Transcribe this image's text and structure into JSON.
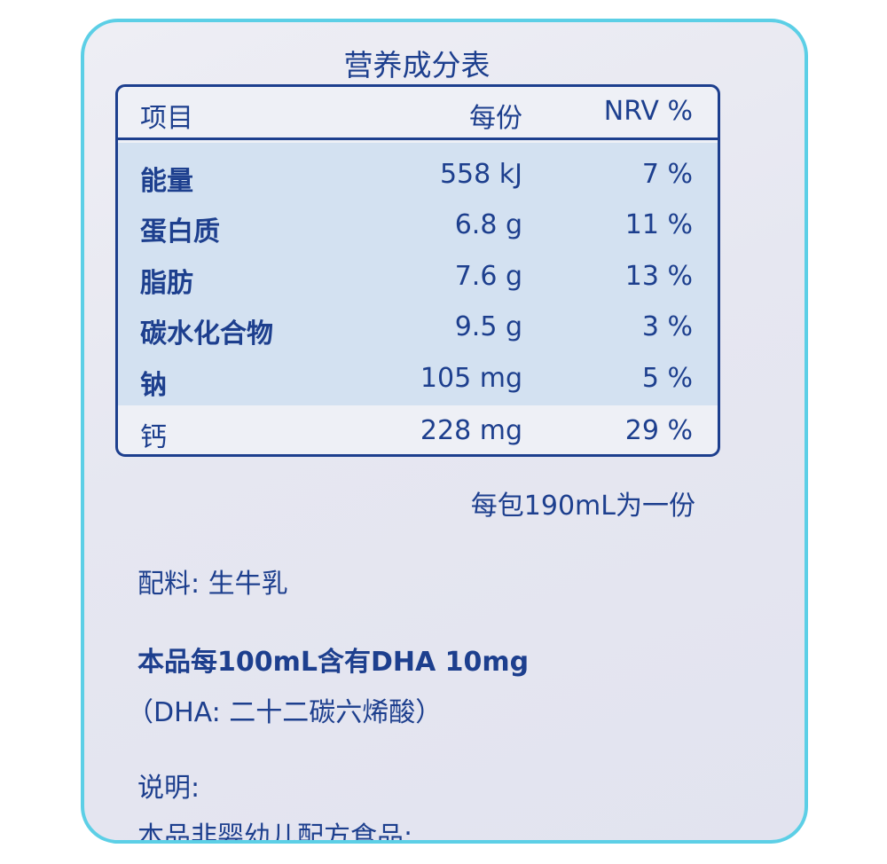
{
  "title": "营养成分表",
  "table": {
    "headers": [
      "项目",
      "每份",
      "NRV %"
    ],
    "rows": [
      {
        "item": "能量",
        "per_serving": "558 kJ",
        "nrv": "7 %",
        "bold": true
      },
      {
        "item": "蛋白质",
        "per_serving": "6.8 g",
        "nrv": "11 %",
        "bold": true
      },
      {
        "item": "脂肪",
        "per_serving": "7.6 g",
        "nrv": "13 %",
        "bold": true
      },
      {
        "item": "碳水化合物",
        "per_serving": "9.5 g",
        "nrv": "3 %",
        "bold": true
      },
      {
        "item": "钠",
        "per_serving": "105 mg",
        "nrv": "5 %",
        "bold": true
      },
      {
        "item": "钙",
        "per_serving": "228 mg",
        "nrv": "29 %",
        "bold": false
      }
    ]
  },
  "serving_note": "每包190mL为一份",
  "ingredients": "配料: 生牛乳",
  "dha_claim": "本品每100mL含有DHA 10mg",
  "dha_note": "（DHA: 二十二碳六烯酸）",
  "notes_label": "说明:",
  "notes_line1": "本品非婴幼儿配方食品:",
  "colors": {
    "text": "#1d3f8e",
    "frame": "#5ccfe6",
    "highlight": "#d3e1f1"
  }
}
